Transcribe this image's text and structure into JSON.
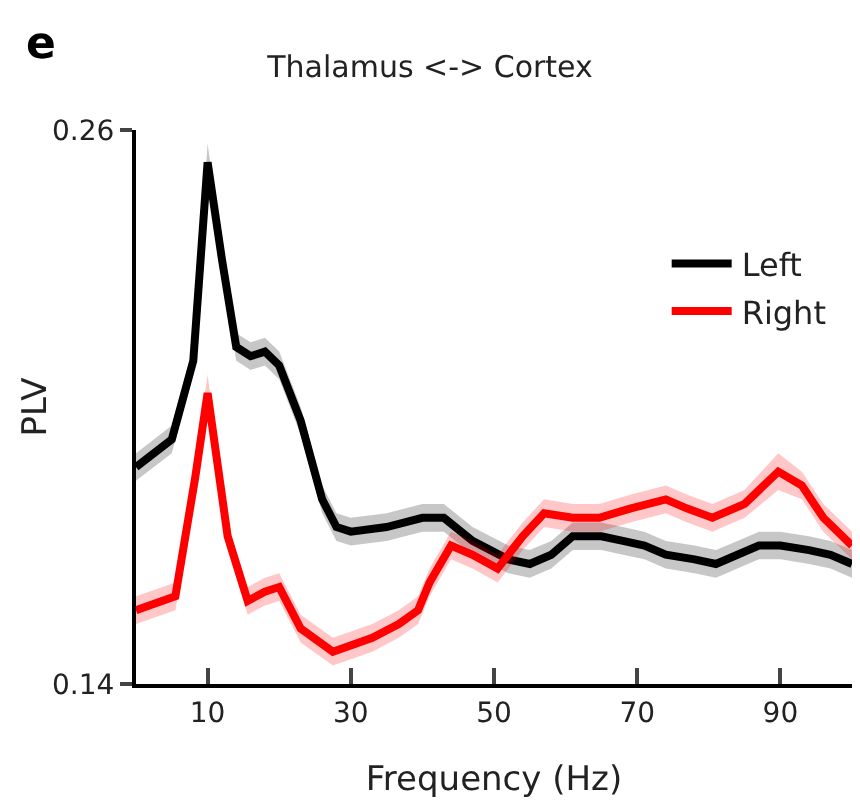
{
  "chart_data": {
    "type": "line",
    "title": "Thalamus <-> Cortex",
    "xlabel": "Frequency (Hz)",
    "ylabel": "PLV",
    "annotations": [
      "e"
    ],
    "xlim": [
      0,
      100
    ],
    "xticks": [
      10,
      30,
      50,
      70,
      90
    ],
    "ylim": [
      0.14,
      0.26
    ],
    "yticks": [
      0.14,
      0.26
    ],
    "grid": false,
    "legend": "top right",
    "line_style": "solid",
    "marker": "none",
    "series": [
      {
        "name": "Left",
        "color": "#000000",
        "x": [
          0,
          5,
          8,
          10,
          12,
          14,
          16,
          18,
          20,
          23,
          26,
          28,
          30,
          35,
          40,
          43,
          47,
          52,
          55,
          58,
          61,
          65,
          68,
          71,
          74,
          78,
          81,
          84,
          87,
          90,
          94,
          97,
          100
        ],
        "values": [
          0.187,
          0.193,
          0.21,
          0.253,
          0.232,
          0.213,
          0.211,
          0.212,
          0.209,
          0.197,
          0.18,
          0.174,
          0.173,
          0.174,
          0.176,
          0.176,
          0.171,
          0.167,
          0.166,
          0.168,
          0.172,
          0.172,
          0.171,
          0.17,
          0.168,
          0.167,
          0.166,
          0.168,
          0.17,
          0.17,
          0.169,
          0.168,
          0.166
        ],
        "lower": [
          0.184,
          0.19,
          0.207,
          0.249,
          0.229,
          0.21,
          0.208,
          0.209,
          0.206,
          0.194,
          0.177,
          0.171,
          0.17,
          0.171,
          0.173,
          0.173,
          0.168,
          0.164,
          0.163,
          0.165,
          0.169,
          0.169,
          0.168,
          0.167,
          0.165,
          0.164,
          0.163,
          0.165,
          0.167,
          0.167,
          0.166,
          0.165,
          0.163
        ],
        "upper": [
          0.19,
          0.196,
          0.213,
          0.257,
          0.235,
          0.216,
          0.214,
          0.215,
          0.212,
          0.2,
          0.183,
          0.177,
          0.176,
          0.177,
          0.179,
          0.179,
          0.174,
          0.17,
          0.169,
          0.171,
          0.175,
          0.175,
          0.174,
          0.173,
          0.171,
          0.17,
          0.169,
          0.171,
          0.173,
          0.173,
          0.172,
          0.171,
          0.169
        ]
      },
      {
        "name": "Right",
        "color": "#ff0000",
        "x": [
          0,
          5.5,
          8.3,
          10,
          12.8,
          15.6,
          18,
          20,
          23,
          27.5,
          33,
          36.7,
          39.4,
          41,
          44,
          47,
          50.5,
          54,
          57,
          61,
          64.7,
          69,
          74,
          77,
          80.5,
          85,
          89.7,
          93,
          96,
          100
        ],
        "values": [
          0.156,
          0.159,
          0.185,
          0.203,
          0.172,
          0.158,
          0.16,
          0.161,
          0.152,
          0.147,
          0.15,
          0.153,
          0.156,
          0.162,
          0.17,
          0.168,
          0.165,
          0.172,
          0.177,
          0.176,
          0.176,
          0.178,
          0.18,
          0.178,
          0.176,
          0.179,
          0.186,
          0.183,
          0.176,
          0.17
        ],
        "lower": [
          0.153,
          0.156,
          0.181,
          0.199,
          0.169,
          0.155,
          0.157,
          0.158,
          0.149,
          0.144,
          0.147,
          0.15,
          0.153,
          0.159,
          0.167,
          0.165,
          0.162,
          0.169,
          0.174,
          0.173,
          0.173,
          0.175,
          0.177,
          0.175,
          0.173,
          0.176,
          0.182,
          0.18,
          0.173,
          0.167
        ],
        "upper": [
          0.159,
          0.162,
          0.189,
          0.207,
          0.175,
          0.161,
          0.163,
          0.164,
          0.155,
          0.15,
          0.153,
          0.156,
          0.159,
          0.165,
          0.173,
          0.171,
          0.168,
          0.175,
          0.18,
          0.179,
          0.179,
          0.181,
          0.183,
          0.181,
          0.179,
          0.182,
          0.19,
          0.186,
          0.179,
          0.173
        ]
      }
    ]
  }
}
